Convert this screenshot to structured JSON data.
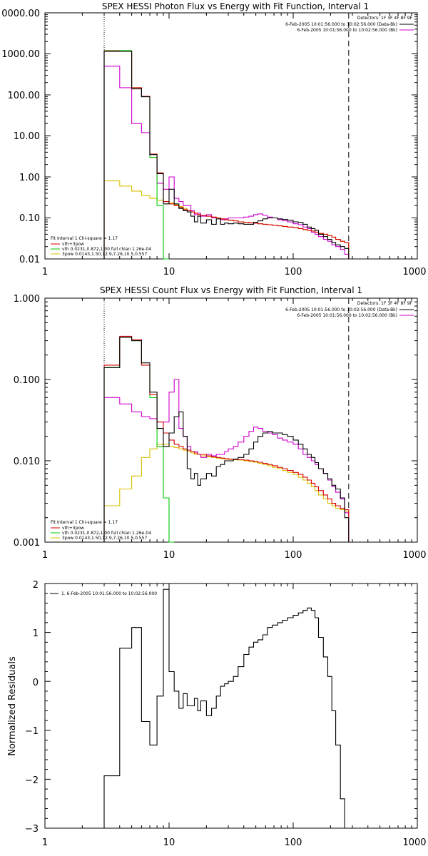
{
  "chart_data": [
    {
      "type": "line",
      "title": "SPEX HESSI Photon Flux vs Energy with Fit Function, Interval 1",
      "xscale": "log",
      "yscale": "log",
      "xlim": [
        1,
        1000
      ],
      "ylim": [
        0.01,
        10000
      ],
      "xticklabels": [
        "1",
        "10",
        "100",
        "1000"
      ],
      "yticklabels": [
        "0.01",
        "0.10",
        "1.00",
        "10.00",
        "100.00",
        "1000.00",
        "0000.00"
      ],
      "vlines": [
        3,
        280
      ],
      "legend_topright": {
        "detectors": "Detectors: 1F 3F 4F 8F 9F",
        "data_label": "6-Feb-2005 10:01:56.000 to 10:02:56.000 (Data-Bk)",
        "bk_label": "6-Feb-2005 10:01:56.000 to 10:02:56.000 (Bk)"
      },
      "legend_bottomleft": {
        "header": "Fit Interval 1    Chi-square = 1.17",
        "items": [
          "vth+3pow",
          "vth 0.0231,0.872,1.00  full chian 1.26e-04",
          "3pow 0.0143,1.50,12.9,7.26,10.5,0.557"
        ]
      },
      "colors": {
        "data": "#000000",
        "model": "#d40000",
        "vth": "#00c800",
        "pow": "#d8c000",
        "bk": "#d000d0"
      },
      "edges": [
        3,
        4,
        5,
        6,
        7,
        8,
        9,
        10,
        11,
        12,
        13,
        14,
        15,
        16,
        17,
        18,
        20,
        22,
        24,
        26,
        28,
        30,
        33,
        36,
        40,
        44,
        48,
        52,
        57,
        62,
        68,
        75,
        82,
        90,
        100,
        110,
        120,
        130,
        140,
        150,
        160,
        175,
        190,
        205,
        220,
        240,
        260,
        280
      ],
      "series": [
        {
          "name": "Data-Bk",
          "color": "#000000",
          "values": [
            1150,
            1150,
            140,
            90,
            3.5,
            1.2,
            0.22,
            0.5,
            0.22,
            0.17,
            0.15,
            0.14,
            0.11,
            0.08,
            0.11,
            0.075,
            0.09,
            0.07,
            0.095,
            0.07,
            0.075,
            0.072,
            0.075,
            0.072,
            0.07,
            0.07,
            0.078,
            0.085,
            0.095,
            0.1,
            0.1,
            0.095,
            0.092,
            0.088,
            0.08,
            0.078,
            0.07,
            0.06,
            0.055,
            0.05,
            0.04,
            0.035,
            0.03,
            0.025,
            0.022,
            0.02,
            0.018
          ]
        },
        {
          "name": "vth+3pow",
          "color": "#d40000",
          "values": [
            1180,
            1150,
            150,
            92,
            3.6,
            1.25,
            0.25,
            0.22,
            0.2,
            0.18,
            0.16,
            0.15,
            0.14,
            0.13,
            0.12,
            0.115,
            0.11,
            0.105,
            0.1,
            0.095,
            0.09,
            0.088,
            0.085,
            0.08,
            0.078,
            0.076,
            0.074,
            0.072,
            0.07,
            0.068,
            0.066,
            0.064,
            0.062,
            0.06,
            0.058,
            0.055,
            0.052,
            0.05,
            0.048,
            0.045,
            0.042,
            0.04,
            0.037,
            0.034,
            0.03,
            0.027,
            0.025
          ]
        },
        {
          "name": "vth",
          "color": "#00c800",
          "values": [
            1200,
            1200,
            150,
            90,
            3.0,
            0.2,
            0.008
          ]
        },
        {
          "name": "3pow",
          "color": "#d8c000",
          "values": [
            0.8,
            0.6,
            0.45,
            0.35,
            0.3,
            0.27,
            0.25,
            0.23,
            0.21,
            0.19,
            0.17,
            0.15,
            0.14,
            0.13,
            0.12,
            0.115,
            0.11,
            0.105,
            0.1,
            0.095,
            0.09,
            0.088,
            0.085,
            0.08,
            0.078,
            0.076,
            0.074,
            0.072,
            0.07,
            0.068,
            0.066,
            0.064,
            0.062,
            0.06,
            0.058,
            0.055,
            0.052,
            0.05,
            0.048,
            0.045,
            0.042,
            0.04,
            0.037,
            0.034,
            0.03,
            0.027,
            0.025
          ]
        },
        {
          "name": "Bk",
          "color": "#d000d0",
          "values": [
            500,
            150,
            20,
            12,
            3.0,
            0.7,
            0.5,
            1.0,
            0.3,
            0.25,
            0.2,
            0.2,
            0.15,
            0.12,
            0.13,
            0.11,
            0.12,
            0.1,
            0.1,
            0.09,
            0.095,
            0.1,
            0.1,
            0.1,
            0.105,
            0.11,
            0.12,
            0.125,
            0.115,
            0.105,
            0.1,
            0.09,
            0.085,
            0.08,
            0.072,
            0.068,
            0.06,
            0.055,
            0.045,
            0.04,
            0.035,
            0.03,
            0.027,
            0.022,
            0.02,
            0.017,
            0.013
          ]
        }
      ]
    },
    {
      "type": "line",
      "title": "SPEX HESSI Count Flux vs Energy with Fit Function, Interval 1",
      "xscale": "log",
      "yscale": "log",
      "xlim": [
        1,
        1000
      ],
      "ylim": [
        0.001,
        1.0
      ],
      "xticklabels": [
        "1",
        "10",
        "100",
        "1000"
      ],
      "yticklabels": [
        "0.001",
        "0.010",
        "0.100",
        "1.000"
      ],
      "vlines": [
        3,
        280
      ],
      "legend_topright": {
        "detectors": "Detectors: 1F 3F 4F 8F 9F",
        "data_label": "6-Feb-2005 10:01:56.000 to 10:02:56.000 (Data-Bk)",
        "bk_label": "6-Feb-2005 10:01:56.000 to 10:02:56.000 (Bk)"
      },
      "legend_bottomleft": {
        "header": "Fit Interval 1    Chi-square = 1.17",
        "items": [
          "vth+3pow",
          "vth 0.0231,0.872,1.00  full chian 1.26e-04",
          "3pow 0.0143,1.50,12.9,7.26,10.5,0.557"
        ]
      },
      "colors": {
        "data": "#000000",
        "model": "#d40000",
        "vth": "#00c800",
        "pow": "#d8c000",
        "bk": "#d000d0"
      },
      "edges": [
        3,
        4,
        5,
        6,
        7,
        8,
        9,
        10,
        11,
        12,
        13,
        14,
        15,
        16,
        17,
        18,
        20,
        22,
        24,
        26,
        28,
        30,
        33,
        36,
        40,
        44,
        48,
        52,
        57,
        62,
        68,
        75,
        82,
        90,
        100,
        110,
        120,
        130,
        140,
        150,
        160,
        175,
        190,
        205,
        220,
        240,
        260,
        280
      ],
      "series": [
        {
          "name": "Data-Bk",
          "color": "#000000",
          "values": [
            0.14,
            0.33,
            0.3,
            0.16,
            0.07,
            0.025,
            0.015,
            0.022,
            0.035,
            0.04,
            0.02,
            0.008,
            0.006,
            0.007,
            0.005,
            0.006,
            0.007,
            0.0065,
            0.0085,
            0.009,
            0.01,
            0.01,
            0.0105,
            0.011,
            0.012,
            0.014,
            0.017,
            0.02,
            0.022,
            0.023,
            0.022,
            0.022,
            0.021,
            0.02,
            0.018,
            0.016,
            0.014,
            0.012,
            0.011,
            0.0095,
            0.008,
            0.007,
            0.006,
            0.005,
            0.0045,
            0.0035,
            0.002
          ]
        },
        {
          "name": "vth+3pow",
          "color": "#d40000",
          "values": [
            0.15,
            0.34,
            0.31,
            0.15,
            0.065,
            0.03,
            0.022,
            0.018,
            0.016,
            0.015,
            0.014,
            0.0135,
            0.013,
            0.0125,
            0.012,
            0.012,
            0.0115,
            0.0112,
            0.011,
            0.0108,
            0.0106,
            0.0105,
            0.0104,
            0.0103,
            0.0102,
            0.01,
            0.0098,
            0.0096,
            0.0093,
            0.009,
            0.0087,
            0.0083,
            0.008,
            0.0076,
            0.0072,
            0.0068,
            0.0063,
            0.0058,
            0.0053,
            0.0048,
            0.0043,
            0.0038,
            0.0034,
            0.003,
            0.0028,
            0.0026,
            0.0025
          ]
        },
        {
          "name": "vth",
          "color": "#00c800",
          "values": [
            0.14,
            0.33,
            0.3,
            0.15,
            0.06,
            0.015,
            0.0035,
            0.001
          ]
        },
        {
          "name": "3pow",
          "color": "#d8c000",
          "values": [
            0.0028,
            0.0045,
            0.0065,
            0.011,
            0.014,
            0.016,
            0.016,
            0.015,
            0.0145,
            0.014,
            0.0135,
            0.013,
            0.0125,
            0.012,
            0.012,
            0.0115,
            0.0112,
            0.011,
            0.0108,
            0.0106,
            0.0105,
            0.0104,
            0.0103,
            0.0102,
            0.01,
            0.0098,
            0.0096,
            0.0093,
            0.009,
            0.0087,
            0.0083,
            0.008,
            0.0076,
            0.0072,
            0.0068,
            0.0063,
            0.0058,
            0.0053,
            0.0048,
            0.0043,
            0.0038,
            0.0034,
            0.003,
            0.0028,
            0.0026,
            0.0025,
            0.0024
          ]
        },
        {
          "name": "Bk",
          "color": "#d000d0",
          "values": [
            0.06,
            0.05,
            0.04,
            0.035,
            0.033,
            0.03,
            0.03,
            0.07,
            0.1,
            0.025,
            0.02,
            0.015,
            0.013,
            0.013,
            0.012,
            0.011,
            0.012,
            0.0115,
            0.012,
            0.012,
            0.013,
            0.014,
            0.015,
            0.017,
            0.02,
            0.023,
            0.026,
            0.025,
            0.023,
            0.022,
            0.021,
            0.019,
            0.018,
            0.017,
            0.016,
            0.014,
            0.012,
            0.011,
            0.01,
            0.009,
            0.008,
            0.007,
            0.0058,
            0.0048,
            0.0041,
            0.0034,
            0.0023
          ]
        }
      ]
    },
    {
      "type": "line",
      "title": "",
      "xscale": "log",
      "yscale": "linear",
      "xlim": [
        1,
        1000
      ],
      "ylim": [
        -3,
        2
      ],
      "xticklabels": [
        "1",
        "10",
        "100",
        "1000"
      ],
      "yticklabels": [
        "2",
        "1",
        "0",
        "−1",
        "−2",
        "−3"
      ],
      "ylabel": "Normalized Residuals",
      "legend_topleft": {
        "items": [
          "1.  6-Feb-2005 10:01:56.000 to 10:02:56.000"
        ]
      },
      "edges": [
        3,
        4,
        5,
        6,
        7,
        8,
        9,
        10,
        11,
        12,
        13,
        14,
        15,
        16,
        17,
        18,
        20,
        22,
        24,
        26,
        28,
        30,
        33,
        36,
        40,
        44,
        48,
        52,
        57,
        62,
        68,
        75,
        82,
        90,
        100,
        110,
        120,
        130,
        140,
        150,
        160,
        175,
        190,
        205,
        220,
        240,
        260,
        280
      ],
      "series": [
        {
          "name": "1.  6-Feb-2005 10:01:56.000 to 10:02:56.000",
          "color": "#000000",
          "values": [
            -1.93,
            0.68,
            1.1,
            -0.82,
            -1.3,
            -0.3,
            1.88,
            0.2,
            -0.2,
            -0.55,
            -0.25,
            -0.5,
            -0.5,
            -0.35,
            -0.6,
            -0.4,
            -0.7,
            -0.55,
            -0.3,
            -0.1,
            -0.05,
            0.0,
            0.1,
            0.3,
            0.55,
            0.7,
            0.8,
            0.85,
            0.95,
            1.1,
            1.15,
            1.2,
            1.25,
            1.3,
            1.35,
            1.4,
            1.45,
            1.5,
            1.45,
            1.3,
            0.9,
            0.5,
            0.1,
            -0.6,
            -1.3,
            -2.4,
            -3.0
          ]
        }
      ]
    }
  ]
}
